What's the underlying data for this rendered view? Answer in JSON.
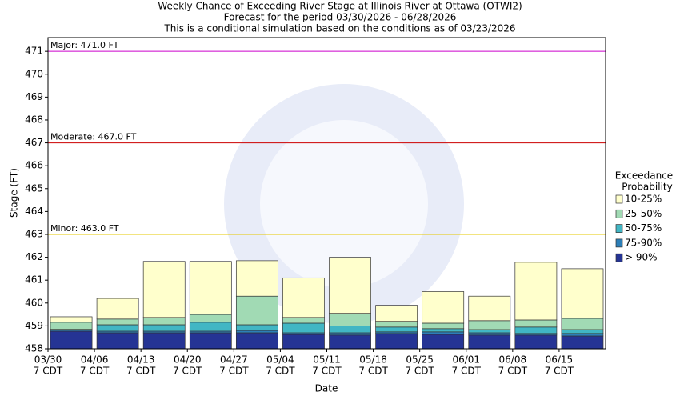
{
  "chart_data": {
    "type": "exceedance_bar",
    "title": "Weekly Chance of Exceeding River Stage at Illinois River at Ottawa (OTWI2)",
    "subtitle": [
      "Forecast for the period 03/30/2026 - 06/28/2026",
      "This is a conditional simulation based on the conditions as of 03/23/2026"
    ],
    "x_label": "Date",
    "y_label": "Stage (FT)",
    "categories": [
      "03/30",
      "04/06",
      "04/13",
      "04/20",
      "04/27",
      "05/04",
      "05/11",
      "05/18",
      "05/25",
      "06/01",
      "06/08",
      "06/15"
    ],
    "category_sublabel": "7 CDT",
    "ylim": [
      458,
      471.6
    ],
    "yticks": [
      458,
      459,
      460,
      461,
      462,
      463,
      464,
      465,
      466,
      467,
      468,
      469,
      470,
      471
    ],
    "legend_title": [
      "Exceedance",
      "Probability"
    ],
    "series": [
      {
        "name": "> 90%",
        "color": "#253494",
        "values": [
          458.77,
          458.7,
          458.7,
          458.7,
          458.7,
          458.63,
          458.6,
          458.67,
          458.63,
          458.6,
          458.6,
          458.56
        ]
      },
      {
        "name": "75-90%",
        "color": "#2c7fb8",
        "values": [
          458.84,
          458.77,
          458.77,
          458.77,
          458.8,
          458.7,
          458.7,
          458.74,
          458.74,
          458.7,
          458.67,
          458.67
        ]
      },
      {
        "name": "50-75%",
        "color": "#41b6c4",
        "values": [
          458.85,
          459.05,
          459.05,
          459.16,
          459.05,
          459.12,
          459.0,
          458.95,
          458.88,
          458.84,
          458.95,
          458.84
        ]
      },
      {
        "name": "25-50%",
        "color": "#a1dab4",
        "values": [
          459.16,
          459.3,
          459.37,
          459.5,
          460.3,
          459.37,
          459.55,
          459.2,
          459.12,
          459.23,
          459.26,
          459.33
        ]
      },
      {
        "name": "10-25%",
        "color": "#ffffcc",
        "values": [
          459.4,
          460.2,
          461.82,
          461.82,
          461.85,
          461.1,
          462.0,
          459.9,
          460.5,
          460.3,
          461.78,
          461.5
        ]
      }
    ],
    "thresholds": [
      {
        "value": 471,
        "label": "Major: 471.0 FT",
        "color": "#cc00cc"
      },
      {
        "value": 467,
        "label": "Moderate: 467.0 FT",
        "color": "#cc0000"
      },
      {
        "value": 463,
        "label": "Minor: 463.0 FT",
        "color": "#e6c800"
      }
    ]
  }
}
